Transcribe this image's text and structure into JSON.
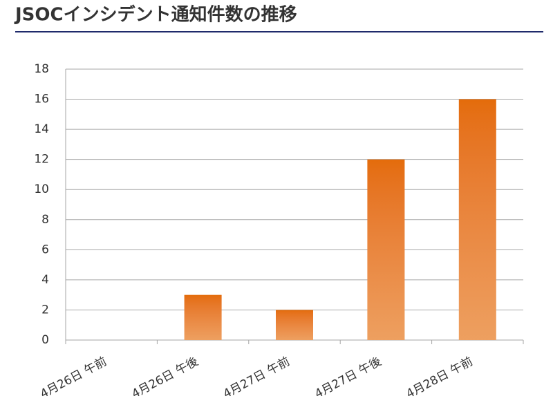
{
  "chart_data": {
    "type": "bar",
    "title": "JSOCインシデント通知件数の推移",
    "categories": [
      "4月26日 午前",
      "4月26日 午後",
      "4月27日 午前",
      "4月27日 午後",
      "4月28日 午前"
    ],
    "values": [
      0,
      3,
      2,
      12,
      16
    ],
    "color": "#e46c0a",
    "ylim": [
      0,
      18
    ],
    "yticks": [
      0,
      2,
      4,
      6,
      8,
      10,
      12,
      14,
      16,
      18
    ],
    "grid": true
  }
}
